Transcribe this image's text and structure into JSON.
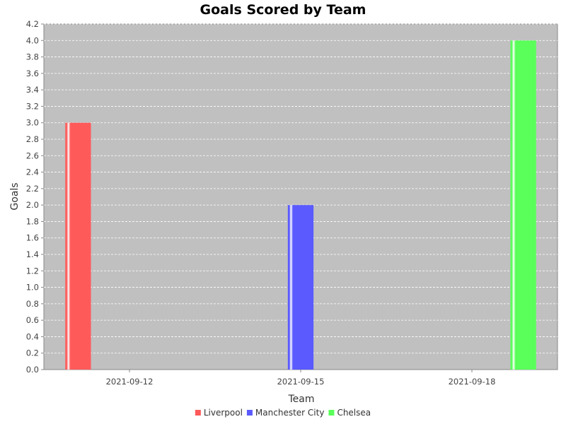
{
  "chart_data": {
    "type": "bar",
    "title": "Goals Scored by Team",
    "xlabel": "Team",
    "ylabel": "Goals",
    "categories": [
      "2021-09-12",
      "2021-09-15",
      "2021-09-18"
    ],
    "series": [
      {
        "name": "Liverpool",
        "values": [
          3.0,
          null,
          null
        ],
        "color": "#ff5a5a"
      },
      {
        "name": "Manchester City",
        "values": [
          null,
          2.0,
          null
        ],
        "color": "#5a5aff"
      },
      {
        "name": "Chelsea",
        "values": [
          null,
          null,
          4.0
        ],
        "color": "#5aff5a"
      }
    ],
    "ylim": [
      0,
      4.2
    ],
    "ytick_step": 0.2,
    "grid": true,
    "plot_background": "#c0c0c0",
    "legend_position": "bottom"
  }
}
